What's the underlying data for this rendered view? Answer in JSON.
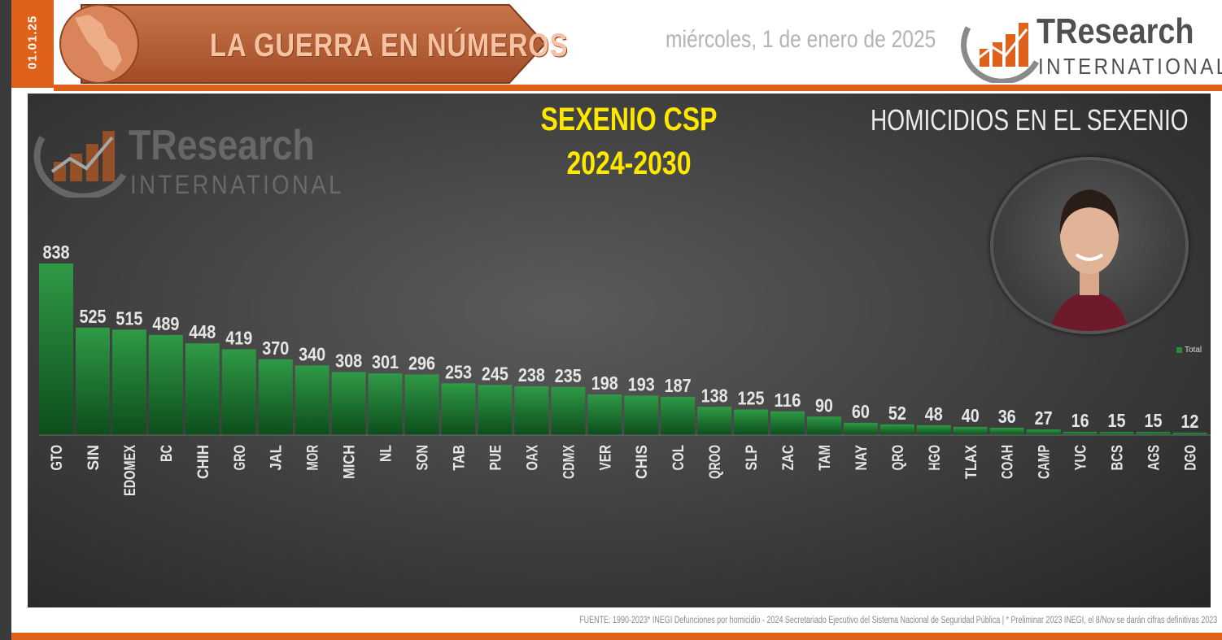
{
  "header": {
    "date_code": "01.01.25",
    "banner_title": "LA GUERRA EN NÚMEROS",
    "date_text": "miércoles, 1 de enero de 2025",
    "logo_brand": "TResearch",
    "logo_sub": "INTERNATIONAL"
  },
  "panel": {
    "title_line1": "SEXENIO CSP",
    "title_line2": "2024-2030",
    "right_title": "HOMICIDIOS EN EL SEXENIO",
    "watermark_brand": "TResearch",
    "watermark_sub": "INTERNATIONAL"
  },
  "footer": {
    "source": "FUENTE: 1990-2023* INEGI Defunciones por homicidio - 2024 Secretariado Ejecutivo del Sistema Nacional de Seguridad Pública | * Preliminar 2023 INEGI, el  8/Nov se darán cifras definitivas 2023"
  },
  "colors": {
    "accent": "#e0621a",
    "bar_top": "#2f9a46",
    "bar_bottom": "#0d4d1c",
    "title_yellow": "#ffe800"
  },
  "chart_data": {
    "type": "bar",
    "categories": [
      "GTO",
      "SIN",
      "EDOMEX",
      "BC",
      "CHIH",
      "GRO",
      "JAL",
      "MOR",
      "MICH",
      "NL",
      "SON",
      "TAB",
      "PUE",
      "OAX",
      "CDMX",
      "VER",
      "CHIS",
      "COL",
      "QROO",
      "SLP",
      "ZAC",
      "TAM",
      "NAY",
      "QRO",
      "HGO",
      "TLAX",
      "COAH",
      "CAMP",
      "YUC",
      "BCS",
      "AGS",
      "DGO"
    ],
    "series": [
      {
        "name": "Total",
        "values": [
          838,
          525,
          515,
          489,
          448,
          419,
          370,
          340,
          308,
          301,
          296,
          253,
          245,
          238,
          235,
          198,
          193,
          187,
          138,
          125,
          116,
          90,
          60,
          52,
          48,
          40,
          36,
          27,
          16,
          15,
          15,
          12
        ]
      }
    ],
    "title": "HOMICIDIOS EN EL SEXENIO",
    "xlabel": "",
    "ylabel": "",
    "ylim": [
      0,
      900
    ],
    "grid": false,
    "legend": "right",
    "data_labels": true
  }
}
